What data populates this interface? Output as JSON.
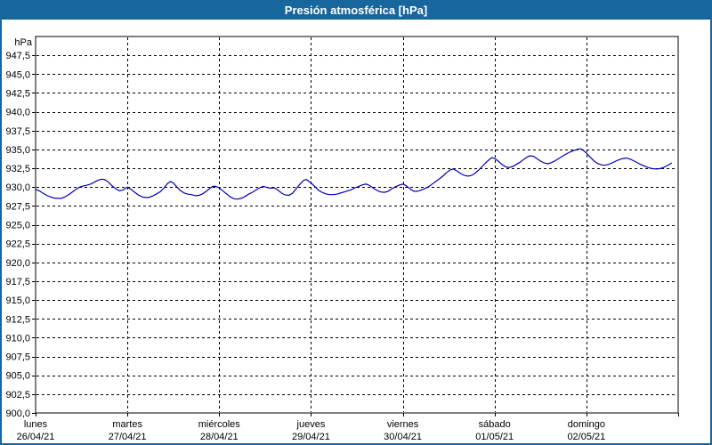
{
  "window": {
    "title": "Presión atmosférica [hPa]"
  },
  "colors": {
    "frame": "#17669e",
    "titlebar": "#17669e",
    "title_text": "#ffffff",
    "plot_background": "#ffffff",
    "plot_border": "#000000",
    "grid": "#000000",
    "tick_text": "#000000",
    "line": "#0000b3"
  },
  "chart_data": {
    "type": "line",
    "title": "Presión atmosférica [hPa]",
    "unit_label": "hPa",
    "ylabel": "hPa",
    "xlabel": "",
    "ylim": [
      900,
      950
    ],
    "xlim_days": [
      0,
      7
    ],
    "grid": "dashed",
    "legend": "none",
    "yticks": [
      {
        "value": 947.5,
        "label": "947,5"
      },
      {
        "value": 945.0,
        "label": "945,0"
      },
      {
        "value": 942.5,
        "label": "942,5"
      },
      {
        "value": 940.0,
        "label": "940,0"
      },
      {
        "value": 937.5,
        "label": "937,5"
      },
      {
        "value": 935.0,
        "label": "935,0"
      },
      {
        "value": 932.5,
        "label": "932,5"
      },
      {
        "value": 930.0,
        "label": "930,0"
      },
      {
        "value": 927.5,
        "label": "927,5"
      },
      {
        "value": 925.0,
        "label": "925,0"
      },
      {
        "value": 922.5,
        "label": "922,5"
      },
      {
        "value": 920.0,
        "label": "920,0"
      },
      {
        "value": 917.5,
        "label": "917,5"
      },
      {
        "value": 915.0,
        "label": "915,0"
      },
      {
        "value": 912.5,
        "label": "912,5"
      },
      {
        "value": 910.0,
        "label": "910,0"
      },
      {
        "value": 907.5,
        "label": "907,5"
      },
      {
        "value": 905.0,
        "label": "905,0"
      },
      {
        "value": 902.5,
        "label": "902,5"
      },
      {
        "value": 900.0,
        "label": "900,0"
      }
    ],
    "x_days": [
      {
        "t": 0,
        "weekday": "lunes",
        "date": "26/04/21"
      },
      {
        "t": 1,
        "weekday": "martes",
        "date": "27/04/21"
      },
      {
        "t": 2,
        "weekday": "miércoles",
        "date": "28/04/21"
      },
      {
        "t": 3,
        "weekday": "jueves",
        "date": "29/04/21"
      },
      {
        "t": 4,
        "weekday": "viernes",
        "date": "30/04/21"
      },
      {
        "t": 5,
        "weekday": "sábado",
        "date": "01/05/21"
      },
      {
        "t": 6,
        "weekday": "domingo",
        "date": "02/05/21"
      }
    ],
    "series": [
      {
        "name": "Presión atmosférica",
        "points": [
          [
            0.0,
            929.7
          ],
          [
            0.04,
            929.5
          ],
          [
            0.08,
            929.2
          ],
          [
            0.12,
            928.9
          ],
          [
            0.16,
            928.7
          ],
          [
            0.2,
            928.55
          ],
          [
            0.24,
            928.5
          ],
          [
            0.28,
            928.5
          ],
          [
            0.32,
            928.7
          ],
          [
            0.36,
            929.0
          ],
          [
            0.4,
            929.35
          ],
          [
            0.44,
            929.7
          ],
          [
            0.48,
            930.0
          ],
          [
            0.52,
            930.15
          ],
          [
            0.56,
            930.25
          ],
          [
            0.6,
            930.4
          ],
          [
            0.64,
            930.65
          ],
          [
            0.68,
            930.9
          ],
          [
            0.72,
            931.05
          ],
          [
            0.75,
            931.0
          ],
          [
            0.79,
            930.7
          ],
          [
            0.83,
            930.2
          ],
          [
            0.87,
            929.8
          ],
          [
            0.91,
            929.5
          ],
          [
            0.95,
            929.6
          ],
          [
            1.0,
            930.0
          ],
          [
            1.04,
            929.7
          ],
          [
            1.08,
            929.3
          ],
          [
            1.12,
            928.95
          ],
          [
            1.16,
            928.7
          ],
          [
            1.2,
            928.6
          ],
          [
            1.24,
            928.65
          ],
          [
            1.28,
            928.85
          ],
          [
            1.32,
            929.1
          ],
          [
            1.36,
            929.4
          ],
          [
            1.4,
            929.9
          ],
          [
            1.44,
            930.5
          ],
          [
            1.47,
            930.75
          ],
          [
            1.5,
            930.55
          ],
          [
            1.54,
            930.0
          ],
          [
            1.58,
            929.5
          ],
          [
            1.62,
            929.2
          ],
          [
            1.66,
            929.05
          ],
          [
            1.7,
            929.0
          ],
          [
            1.74,
            928.85
          ],
          [
            1.78,
            928.9
          ],
          [
            1.82,
            929.1
          ],
          [
            1.86,
            929.45
          ],
          [
            1.9,
            929.85
          ],
          [
            1.93,
            930.1
          ],
          [
            1.96,
            930.1
          ],
          [
            2.0,
            929.9
          ],
          [
            2.04,
            929.5
          ],
          [
            2.08,
            929.1
          ],
          [
            2.12,
            928.7
          ],
          [
            2.16,
            928.45
          ],
          [
            2.2,
            928.4
          ],
          [
            2.24,
            928.5
          ],
          [
            2.28,
            928.75
          ],
          [
            2.32,
            929.05
          ],
          [
            2.36,
            929.3
          ],
          [
            2.4,
            929.6
          ],
          [
            2.44,
            929.9
          ],
          [
            2.48,
            930.1
          ],
          [
            2.52,
            929.95
          ],
          [
            2.56,
            929.85
          ],
          [
            2.6,
            929.9
          ],
          [
            2.64,
            929.6
          ],
          [
            2.68,
            929.2
          ],
          [
            2.72,
            928.95
          ],
          [
            2.76,
            928.9
          ],
          [
            2.8,
            929.2
          ],
          [
            2.84,
            929.8
          ],
          [
            2.88,
            930.4
          ],
          [
            2.92,
            930.9
          ],
          [
            2.95,
            931.0
          ],
          [
            3.0,
            930.55
          ],
          [
            3.04,
            930.1
          ],
          [
            3.08,
            929.6
          ],
          [
            3.12,
            929.3
          ],
          [
            3.16,
            929.1
          ],
          [
            3.2,
            929.0
          ],
          [
            3.24,
            929.0
          ],
          [
            3.28,
            929.05
          ],
          [
            3.32,
            929.2
          ],
          [
            3.36,
            929.35
          ],
          [
            3.4,
            929.5
          ],
          [
            3.44,
            929.65
          ],
          [
            3.48,
            929.9
          ],
          [
            3.52,
            930.1
          ],
          [
            3.56,
            930.3
          ],
          [
            3.6,
            930.4
          ],
          [
            3.64,
            930.2
          ],
          [
            3.68,
            929.85
          ],
          [
            3.72,
            929.55
          ],
          [
            3.76,
            929.35
          ],
          [
            3.8,
            929.3
          ],
          [
            3.84,
            929.45
          ],
          [
            3.88,
            929.75
          ],
          [
            3.92,
            930.05
          ],
          [
            3.96,
            930.25
          ],
          [
            4.0,
            930.4
          ],
          [
            4.04,
            930.15
          ],
          [
            4.08,
            929.75
          ],
          [
            4.12,
            929.45
          ],
          [
            4.16,
            929.45
          ],
          [
            4.2,
            929.6
          ],
          [
            4.24,
            929.8
          ],
          [
            4.28,
            930.05
          ],
          [
            4.32,
            930.4
          ],
          [
            4.36,
            930.75
          ],
          [
            4.4,
            931.1
          ],
          [
            4.44,
            931.5
          ],
          [
            4.48,
            931.95
          ],
          [
            4.52,
            932.3
          ],
          [
            4.55,
            932.4
          ],
          [
            4.59,
            932.15
          ],
          [
            4.63,
            931.8
          ],
          [
            4.67,
            931.55
          ],
          [
            4.71,
            931.45
          ],
          [
            4.75,
            931.55
          ],
          [
            4.79,
            931.85
          ],
          [
            4.83,
            932.3
          ],
          [
            4.87,
            932.8
          ],
          [
            4.91,
            933.3
          ],
          [
            4.95,
            933.75
          ],
          [
            4.97,
            933.9
          ],
          [
            5.0,
            933.8
          ],
          [
            5.04,
            933.45
          ],
          [
            5.08,
            933.0
          ],
          [
            5.12,
            932.7
          ],
          [
            5.15,
            932.6
          ],
          [
            5.19,
            932.7
          ],
          [
            5.23,
            932.95
          ],
          [
            5.27,
            933.25
          ],
          [
            5.31,
            933.6
          ],
          [
            5.35,
            933.95
          ],
          [
            5.38,
            934.15
          ],
          [
            5.42,
            934.1
          ],
          [
            5.46,
            933.8
          ],
          [
            5.5,
            933.45
          ],
          [
            5.54,
            933.2
          ],
          [
            5.58,
            933.1
          ],
          [
            5.62,
            933.25
          ],
          [
            5.66,
            933.5
          ],
          [
            5.7,
            933.8
          ],
          [
            5.74,
            934.1
          ],
          [
            5.78,
            934.4
          ],
          [
            5.82,
            934.65
          ],
          [
            5.86,
            934.85
          ],
          [
            5.9,
            935.0
          ],
          [
            5.93,
            935.1
          ],
          [
            5.96,
            934.95
          ],
          [
            6.0,
            934.5
          ],
          [
            6.04,
            934.0
          ],
          [
            6.08,
            933.5
          ],
          [
            6.12,
            933.15
          ],
          [
            6.16,
            932.95
          ],
          [
            6.2,
            932.9
          ],
          [
            6.24,
            933.0
          ],
          [
            6.28,
            933.2
          ],
          [
            6.32,
            933.45
          ],
          [
            6.36,
            933.65
          ],
          [
            6.4,
            933.8
          ],
          [
            6.44,
            933.85
          ],
          [
            6.48,
            933.7
          ],
          [
            6.52,
            933.45
          ],
          [
            6.56,
            933.2
          ],
          [
            6.6,
            932.95
          ],
          [
            6.64,
            932.75
          ],
          [
            6.68,
            932.55
          ],
          [
            6.72,
            932.45
          ],
          [
            6.76,
            932.4
          ],
          [
            6.8,
            932.45
          ],
          [
            6.84,
            932.6
          ],
          [
            6.88,
            932.85
          ],
          [
            6.91,
            933.05
          ],
          [
            6.93,
            933.2
          ]
        ]
      }
    ]
  }
}
